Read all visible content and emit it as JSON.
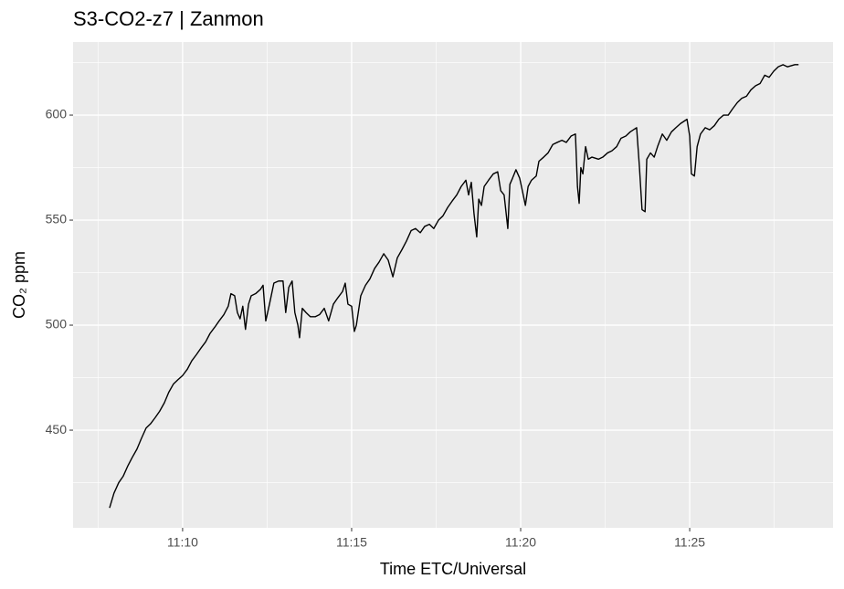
{
  "chart_data": {
    "type": "line",
    "title": "S3-CO2-z7 | Zanmon",
    "x_label": "Time ETC/Universal",
    "y_label": "CO₂ ppm",
    "color": "#000000",
    "grid": true,
    "xlim": [
      666.76,
      689.24
    ],
    "ylim": [
      403.5,
      634.8
    ],
    "xticks": [
      {
        "value": 670,
        "label": "11:10"
      },
      {
        "value": 675,
        "label": "11:15"
      },
      {
        "value": 680,
        "label": "11:20"
      },
      {
        "value": 685,
        "label": "11:25"
      }
    ],
    "yticks": [
      450,
      500,
      550,
      600
    ],
    "minor_xticks": [
      667.5,
      672.5,
      677.5,
      682.5,
      687.5
    ],
    "minor_yticks": [
      425,
      475,
      525,
      575,
      625
    ],
    "x": [
      667.84,
      667.97,
      668.11,
      668.24,
      668.38,
      668.51,
      668.65,
      668.78,
      668.92,
      669.05,
      669.19,
      669.32,
      669.46,
      669.59,
      669.73,
      669.86,
      670.0,
      670.14,
      670.27,
      670.41,
      670.54,
      670.68,
      670.81,
      670.95,
      671.08,
      671.22,
      671.35,
      671.43,
      671.54,
      671.62,
      671.7,
      671.78,
      671.86,
      671.95,
      672.03,
      672.16,
      672.3,
      672.38,
      672.46,
      672.57,
      672.7,
      672.84,
      672.97,
      673.05,
      673.14,
      673.24,
      673.32,
      673.41,
      673.46,
      673.54,
      673.65,
      673.78,
      673.92,
      674.05,
      674.19,
      674.32,
      674.46,
      674.59,
      674.73,
      674.81,
      674.89,
      675.0,
      675.08,
      675.14,
      675.27,
      675.41,
      675.54,
      675.68,
      675.81,
      675.95,
      676.08,
      676.22,
      676.35,
      676.49,
      676.62,
      676.76,
      676.89,
      677.03,
      677.16,
      677.3,
      677.43,
      677.57,
      677.7,
      677.84,
      677.97,
      678.11,
      678.24,
      678.38,
      678.46,
      678.54,
      678.62,
      678.7,
      678.76,
      678.84,
      678.92,
      679.05,
      679.19,
      679.32,
      679.41,
      679.51,
      679.62,
      679.68,
      679.76,
      679.86,
      679.97,
      680.05,
      680.14,
      680.22,
      680.32,
      680.46,
      680.54,
      680.68,
      680.81,
      680.95,
      681.08,
      681.22,
      681.35,
      681.49,
      681.62,
      681.68,
      681.73,
      681.78,
      681.84,
      681.92,
      682.0,
      682.11,
      682.3,
      682.43,
      682.57,
      682.7,
      682.84,
      682.97,
      683.11,
      683.24,
      683.43,
      683.51,
      683.59,
      683.68,
      683.73,
      683.84,
      683.95,
      684.05,
      684.19,
      684.32,
      684.46,
      684.59,
      684.73,
      684.92,
      685.0,
      685.05,
      685.14,
      685.22,
      685.32,
      685.46,
      685.59,
      685.73,
      685.86,
      686.0,
      686.14,
      686.27,
      686.41,
      686.54,
      686.68,
      686.81,
      686.95,
      687.08,
      687.22,
      687.35,
      687.49,
      687.62,
      687.76,
      687.89,
      688.11,
      688.22
    ],
    "values": [
      413,
      420,
      425,
      428,
      433,
      437,
      441,
      446,
      451,
      453,
      456,
      459,
      463,
      468,
      472,
      474,
      476,
      479,
      483,
      486,
      489,
      492,
      496,
      499,
      502,
      505,
      509,
      515,
      514,
      506,
      503,
      509,
      498,
      510,
      514,
      515,
      517,
      519,
      502,
      510,
      520,
      521,
      521,
      506,
      518,
      521,
      506,
      500,
      494,
      508,
      506,
      504,
      504,
      505,
      508,
      502,
      510,
      513,
      516,
      520,
      510,
      509,
      497,
      500,
      514,
      519,
      522,
      527,
      530,
      534,
      531,
      523,
      532,
      536,
      540,
      545,
      546,
      544,
      547,
      548,
      546,
      550,
      552,
      556,
      559,
      562,
      566,
      569,
      562,
      568,
      553,
      542,
      560,
      557,
      566,
      569,
      572,
      573,
      564,
      562,
      546,
      567,
      570,
      574,
      570,
      564,
      557,
      566,
      569,
      571,
      578,
      580,
      582,
      586,
      587,
      588,
      587,
      590,
      591,
      566,
      558,
      575,
      572,
      585,
      579,
      580,
      579,
      580,
      582,
      583,
      585,
      589,
      590,
      592,
      594,
      576,
      555,
      554,
      579,
      582,
      580,
      585,
      591,
      588,
      592,
      594,
      596,
      598,
      590,
      572,
      571,
      585,
      591,
      594,
      593,
      595,
      598,
      600,
      600,
      603,
      606,
      608,
      609,
      612,
      614,
      615,
      619,
      618,
      621,
      623,
      624,
      623,
      624,
      624
    ]
  }
}
